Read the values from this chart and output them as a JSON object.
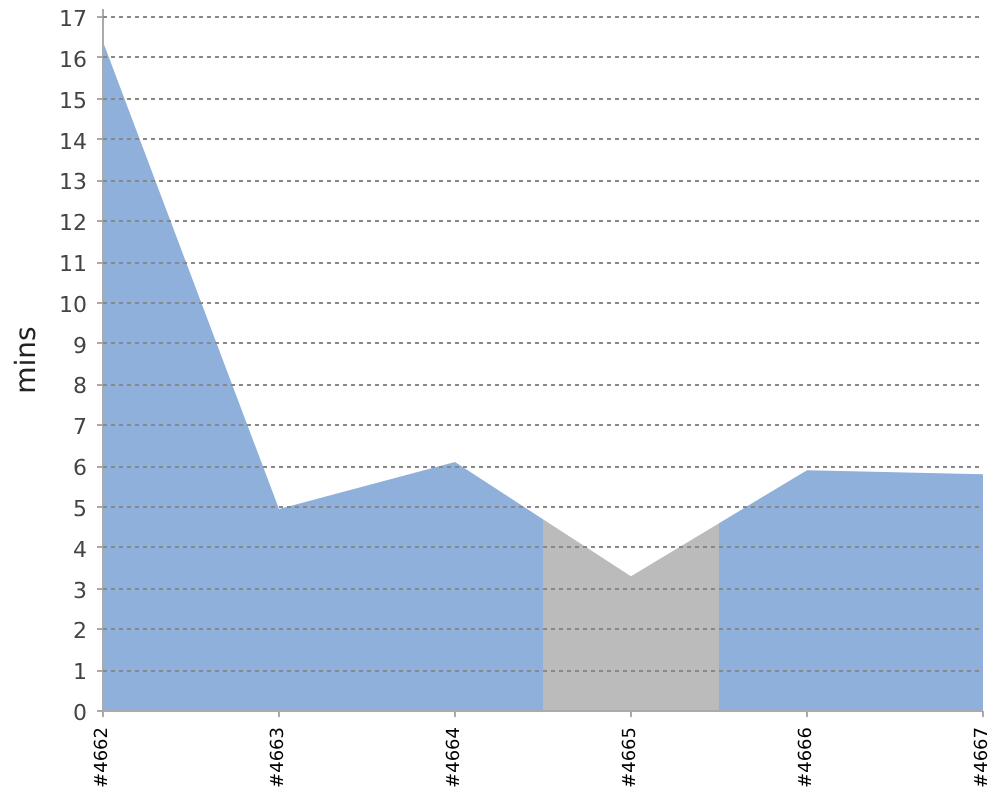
{
  "chart_data": {
    "type": "area",
    "ylabel": "mins",
    "series": [
      {
        "color": "#8eb0da",
        "x": [
          4662,
          4663,
          4664,
          4664.5,
          4665,
          4665.5,
          4666,
          4667
        ],
        "values": [
          16.4,
          4.95,
          6.1,
          4.7,
          null,
          4.6,
          5.9,
          5.8
        ]
      },
      {
        "color": "#bbbbbb",
        "x": [
          4664.5,
          4665,
          4665.5
        ],
        "values": [
          4.7,
          3.3,
          4.6
        ]
      }
    ],
    "xlim": [
      4662,
      4667
    ],
    "xticks": [
      {
        "value": 4662,
        "label": "#4662"
      },
      {
        "value": 4663,
        "label": "#4663"
      },
      {
        "value": 4664,
        "label": "#4664"
      },
      {
        "value": 4665,
        "label": "#4665"
      },
      {
        "value": 4666,
        "label": "#4666"
      },
      {
        "value": 4667,
        "label": "#4667"
      }
    ],
    "ylim": [
      0,
      17.2
    ],
    "yticks": [
      0,
      1,
      2,
      3,
      4,
      5,
      6,
      7,
      8,
      9,
      10,
      11,
      12,
      13,
      14,
      15,
      16,
      17
    ],
    "grid": "y"
  }
}
